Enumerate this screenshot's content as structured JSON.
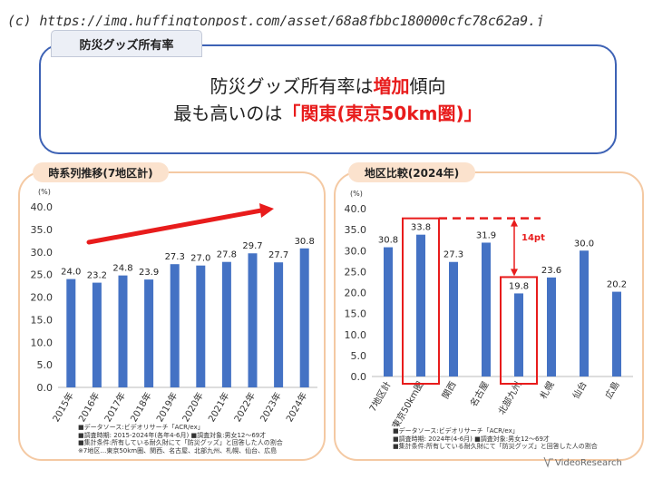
{
  "credit": "(c) https://img.huffingtonpost.com/asset/68a8fbbc180000cfc78c62a9.j",
  "tag": "防災グッズ所有率",
  "headline": {
    "line1_pre": "防災グッズ所有率は",
    "line1_emph": "増加",
    "line1_post": "傾向",
    "line2_pre": "最も高いのは",
    "line2_emph": "「関東(東京50km圏)」"
  },
  "left_panel": {
    "tag": "時系列推移(7地区計)",
    "notes": [
      "■データソース:ビデオリサーチ「ACR/ex」",
      "■調査時期: 2015-2024年(各年4-6月) ■調査対象:男女12～69才",
      "■集計条件:所有している耐久財にて「防災グッズ」と回答した人の割合",
      "※7地区…東京50km圏、関西、名古屋、北部九州、札幌、仙台、広島"
    ]
  },
  "right_panel": {
    "tag": "地区比較(2024年)",
    "gap_label": "14pt",
    "notes": [
      "■データソース:ビデオリサーチ「ACR/ex」",
      "■調査時期: 2024年(4-6月) ■調査対象:男女12～69才",
      "■集計条件:所有している耐久財にて「防災グッズ」と回答した人の割合"
    ]
  },
  "logo": "VideoResearch",
  "colors": {
    "bar": "#4472c4",
    "accent_red": "#e81c1c",
    "panel_border": "#f4c9a3",
    "headline_border": "#3d62b5"
  },
  "chart_data": [
    {
      "type": "bar",
      "title": "時系列推移(7地区計)",
      "ylabel": "(%)",
      "ylim": [
        0,
        40
      ],
      "yticks": [
        "0.0",
        "5.0",
        "10.0",
        "15.0",
        "20.0",
        "25.0",
        "30.0",
        "35.0",
        "40.0"
      ],
      "categories": [
        "2015年",
        "2016年",
        "2017年",
        "2018年",
        "2019年",
        "2020年",
        "2021年",
        "2022年",
        "2023年",
        "2024年"
      ],
      "values": [
        24.0,
        23.2,
        24.8,
        23.9,
        27.3,
        27.0,
        27.8,
        29.7,
        27.7,
        30.8
      ],
      "labels": [
        "24.0",
        "23.2",
        "24.8",
        "23.9",
        "27.3",
        "27.0",
        "27.8",
        "29.7",
        "27.7",
        "30.8"
      ],
      "annotation": "upward trend arrow",
      "grid": false
    },
    {
      "type": "bar",
      "title": "地区比較(2024年)",
      "ylabel": "(%)",
      "ylim": [
        0,
        40
      ],
      "yticks": [
        "0.0",
        "5.0",
        "10.0",
        "15.0",
        "20.0",
        "25.0",
        "30.0",
        "35.0",
        "40.0"
      ],
      "categories": [
        "7地区計",
        "東京50km圏",
        "関西",
        "名古屋",
        "北部九州",
        "札幌",
        "仙台",
        "広島"
      ],
      "values": [
        30.8,
        33.8,
        27.3,
        31.9,
        19.8,
        23.6,
        30.0,
        20.2
      ],
      "labels": [
        "30.8",
        "33.8",
        "27.3",
        "31.9",
        "19.8",
        "23.6",
        "30.0",
        "20.2"
      ],
      "highlighted": [
        "東京50km圏",
        "北部九州"
      ],
      "annotation": "14pt",
      "grid": false
    }
  ]
}
